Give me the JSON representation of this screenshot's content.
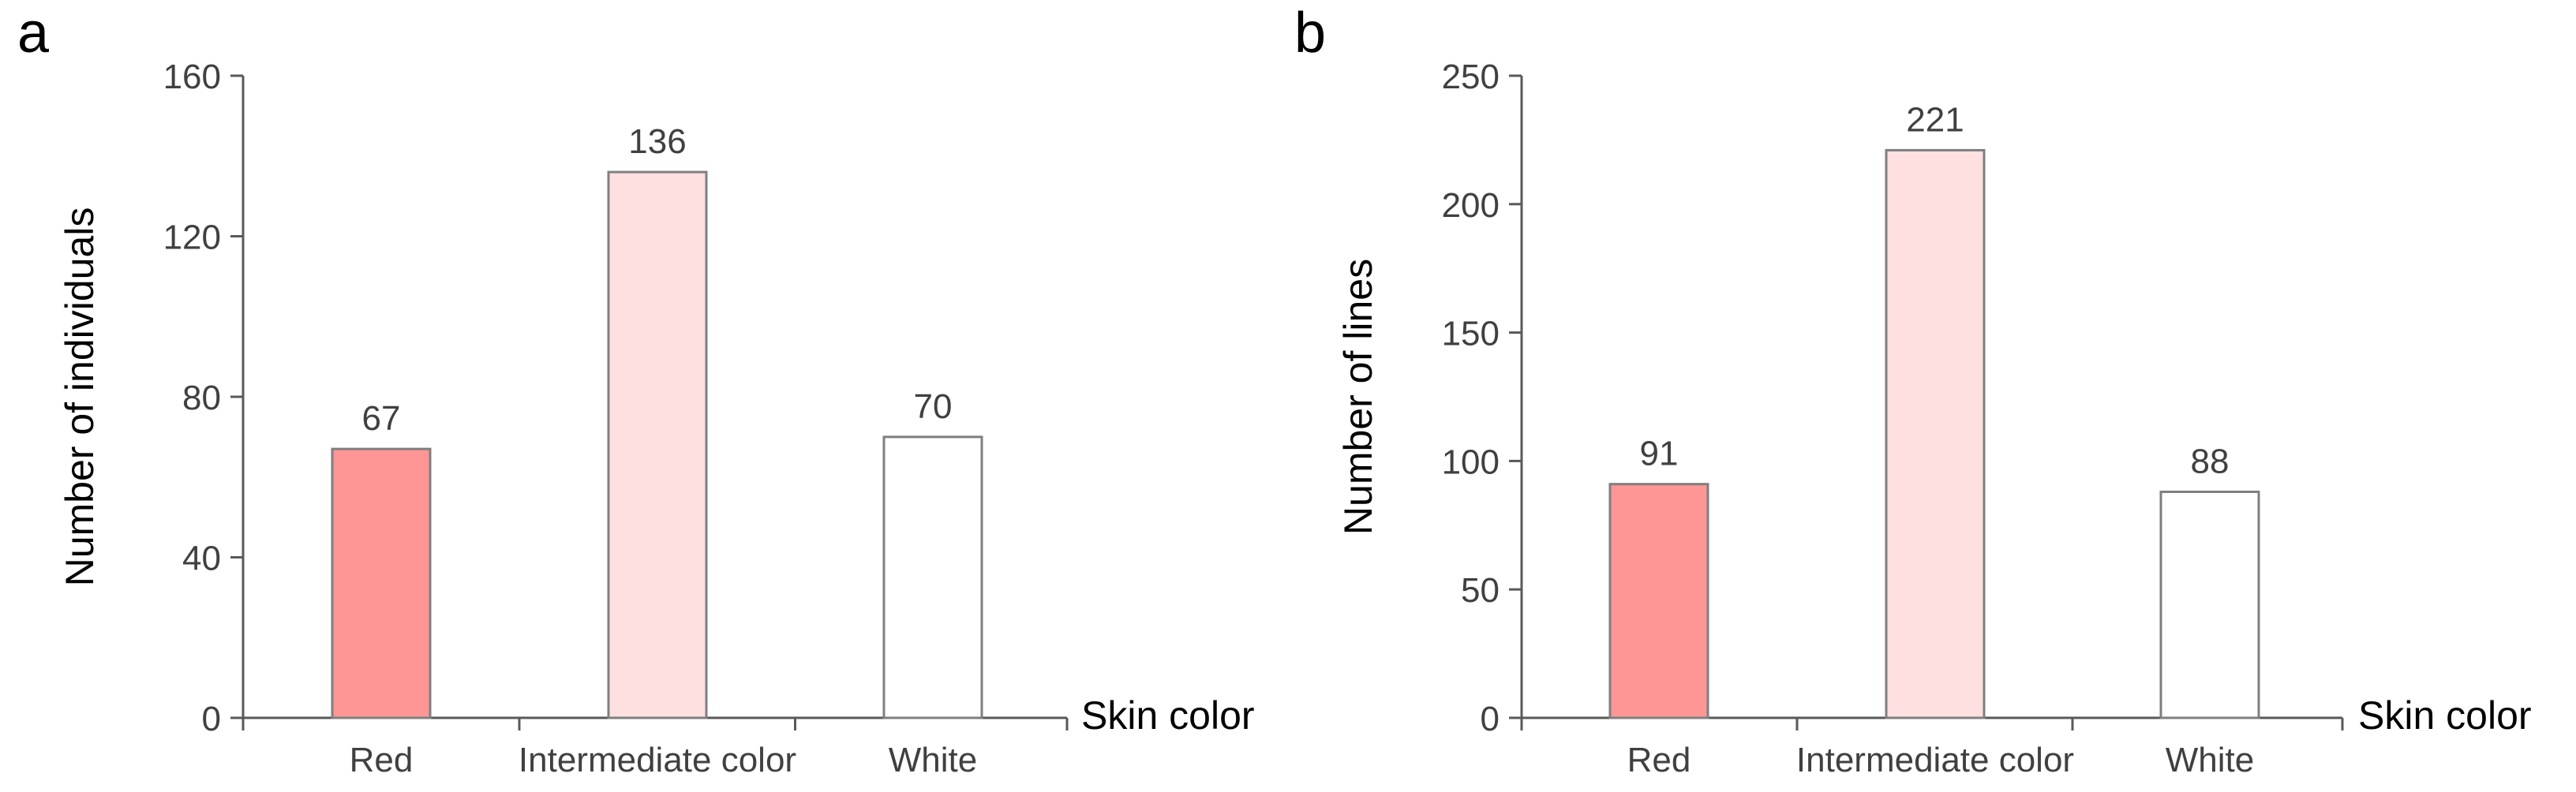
{
  "panels": [
    {
      "letter": "a",
      "chart_data": {
        "type": "bar",
        "categories": [
          "Red",
          "Intermediate color",
          "White"
        ],
        "values": [
          67,
          136,
          70
        ],
        "data_labels": [
          "67",
          "136",
          "70"
        ],
        "xlabel": "Skin color",
        "ylabel": "Number of individuals",
        "ylim": [
          0,
          160
        ],
        "yticks": [
          "0",
          "40",
          "80",
          "120",
          "160"
        ],
        "grid": false,
        "bar_colors": [
          "#ff9696",
          "#ffe0e1",
          "#ffffff"
        ]
      }
    },
    {
      "letter": "b",
      "chart_data": {
        "type": "bar",
        "categories": [
          "Red",
          "Intermediate color",
          "White"
        ],
        "values": [
          91,
          221,
          88
        ],
        "data_labels": [
          "91",
          "221",
          "88"
        ],
        "xlabel": "Skin color",
        "ylabel": "Number of lines",
        "ylim": [
          0,
          250
        ],
        "yticks": [
          "0",
          "50",
          "100",
          "150",
          "200",
          "250"
        ],
        "grid": false,
        "bar_colors": [
          "#ff9696",
          "#ffe0e1",
          "#ffffff"
        ]
      }
    }
  ],
  "chart_data": [
    {
      "type": "bar",
      "categories": [
        "Red",
        "Intermediate color",
        "White"
      ],
      "values": [
        67,
        136,
        70
      ],
      "xlabel": "Skin color",
      "ylabel": "Number of individuals",
      "ylim": [
        0,
        160
      ]
    },
    {
      "type": "bar",
      "categories": [
        "Red",
        "Intermediate color",
        "White"
      ],
      "values": [
        91,
        221,
        88
      ],
      "xlabel": "Skin color",
      "ylabel": "Number of lines",
      "ylim": [
        0,
        250
      ]
    }
  ],
  "colors": {
    "axis": "#595959",
    "bar_outline": "#7f7f7f",
    "text": "#404040"
  }
}
